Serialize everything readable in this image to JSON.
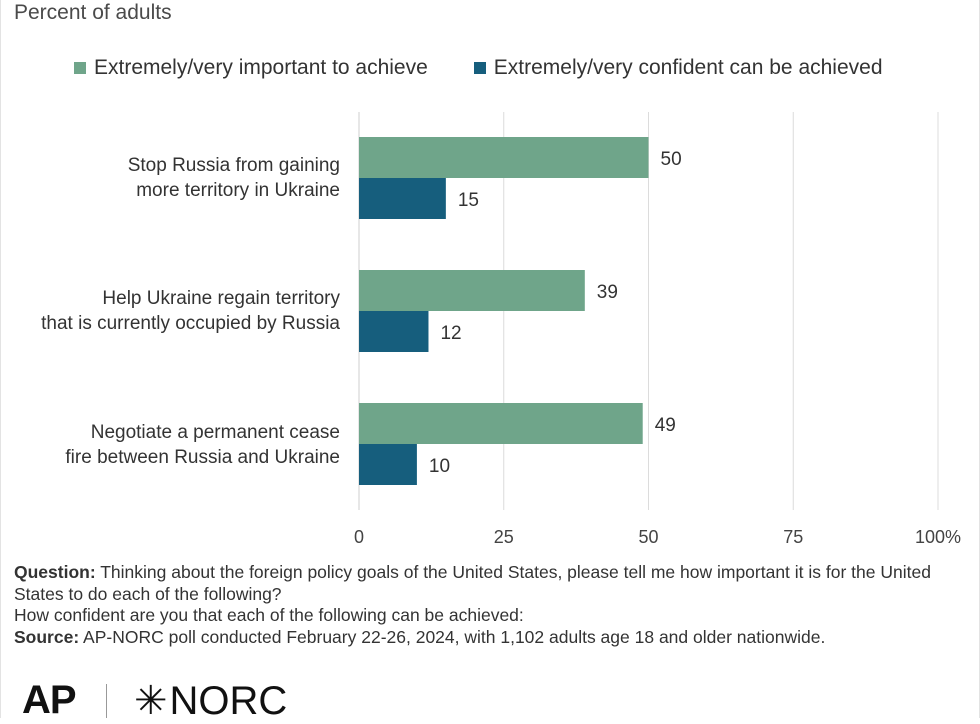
{
  "subtitle": "Percent of adults",
  "colors": {
    "important": "#6fa58a",
    "confident": "#165e7d",
    "grid": "#dcdcdc",
    "text": "#333333"
  },
  "legend": [
    "Extremely/very important to achieve",
    "Extremely/very confident can be achieved"
  ],
  "chart_data": {
    "type": "bar",
    "orientation": "horizontal",
    "categories": [
      "Stop Russia from gaining more territory in Ukraine",
      "Help Ukraine regain territory that is currently occupied by Russia",
      "Negotiate a permanent cease fire between Russia and Ukraine"
    ],
    "category_lines": [
      [
        "Stop Russia from gaining",
        "more territory in Ukraine"
      ],
      [
        "Help Ukraine regain territory",
        "that is currently occupied by Russia"
      ],
      [
        "Negotiate a permanent cease",
        "fire between Russia and Ukraine"
      ]
    ],
    "series": [
      {
        "name": "Extremely/very important to achieve",
        "values": [
          50,
          39,
          49
        ]
      },
      {
        "name": "Extremely/very confident can be achieved",
        "values": [
          15,
          12,
          10
        ]
      }
    ],
    "xlim": [
      0,
      100
    ],
    "x_ticks": [
      "0",
      "25",
      "50",
      "75",
      "100%"
    ],
    "x_tick_values": [
      0,
      25,
      50,
      75,
      100
    ],
    "grid": true,
    "legend_position": "top"
  },
  "footnote": {
    "question_label": "Question:",
    "question_text": " Thinking about the foreign policy goals of the United States, please tell me how important it is for the United States to do each of the following?",
    "question_line2": "How confident are you that each of the following can be achieved:",
    "source_label": "Source:",
    "source_text": " AP-NORC poll conducted February 22-26, 2024, with 1,102 adults age 18 and older nationwide."
  },
  "logos": {
    "ap": "AP",
    "norc": "NORC",
    "norc_mark": "✳"
  }
}
